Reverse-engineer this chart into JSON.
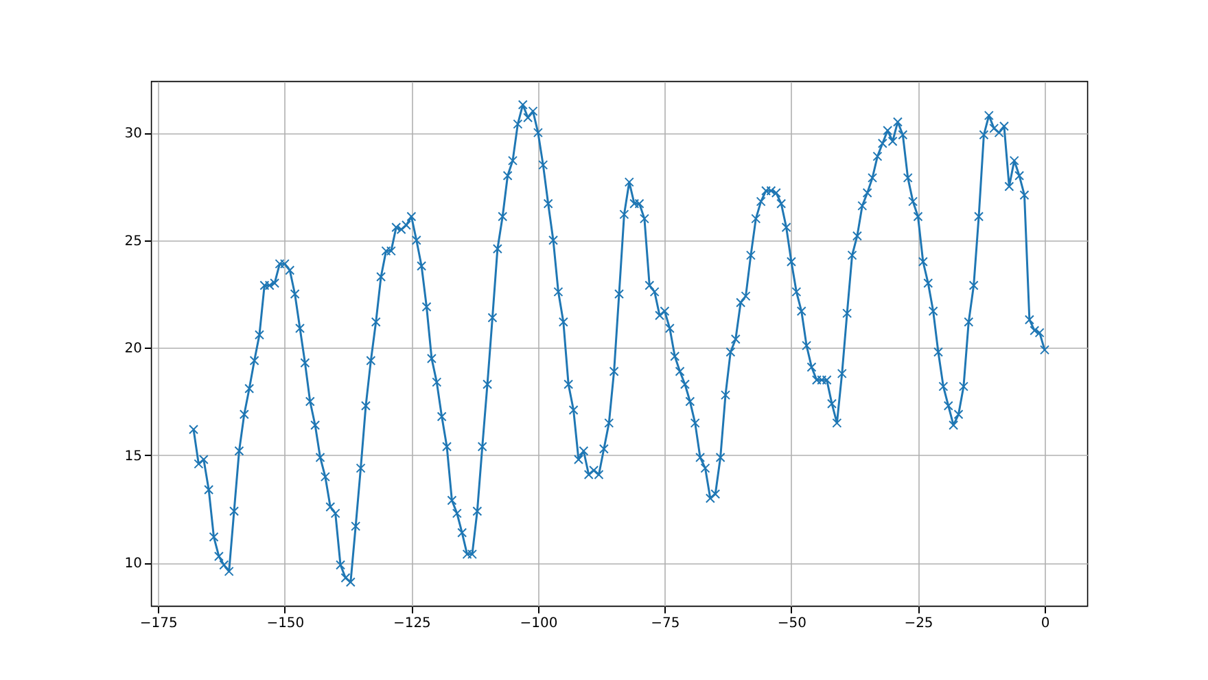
{
  "chart_data": {
    "type": "line",
    "marker": "cross",
    "line_style": "solid",
    "grid": true,
    "xlim": [
      -176.4,
      8.4
    ],
    "xticks": [
      -175,
      -150,
      -125,
      -100,
      -75,
      -50,
      -25,
      0
    ],
    "ylim": [
      8.0,
      32.4
    ],
    "yticks": [
      10,
      15,
      20,
      25,
      30
    ],
    "x": [
      -168,
      -167,
      -166,
      -165,
      -164,
      -163,
      -162,
      -161,
      -160,
      -159,
      -158,
      -157,
      -156,
      -155,
      -154,
      -153,
      -152,
      -151,
      -150,
      -149,
      -148,
      -147,
      -146,
      -145,
      -144,
      -143,
      -142,
      -141,
      -140,
      -139,
      -138,
      -137,
      -136,
      -135,
      -134,
      -133,
      -132,
      -131,
      -130,
      -129,
      -128,
      -127,
      -126,
      -125,
      -124,
      -123,
      -122,
      -121,
      -120,
      -119,
      -118,
      -117,
      -116,
      -115,
      -114,
      -113,
      -112,
      -111,
      -110,
      -109,
      -108,
      -107,
      -106,
      -105,
      -104,
      -103,
      -102,
      -101,
      -100,
      -99,
      -98,
      -97,
      -96,
      -95,
      -94,
      -93,
      -92,
      -91,
      -90,
      -89,
      -88,
      -87,
      -86,
      -85,
      -84,
      -83,
      -82,
      -81,
      -80,
      -79,
      -78,
      -77,
      -76,
      -75,
      -74,
      -73,
      -72,
      -71,
      -70,
      -69,
      -68,
      -67,
      -66,
      -65,
      -64,
      -63,
      -62,
      -61,
      -60,
      -59,
      -58,
      -57,
      -56,
      -55,
      -54,
      -53,
      -52,
      -51,
      -50,
      -49,
      -48,
      -47,
      -46,
      -45,
      -44,
      -43,
      -42,
      -41,
      -40,
      -39,
      -38,
      -37,
      -36,
      -35,
      -34,
      -33,
      -32,
      -31,
      -30,
      -29,
      -28,
      -27,
      -26,
      -25,
      -24,
      -23,
      -22,
      -21,
      -20,
      -19,
      -18,
      -17,
      -16,
      -15,
      -14,
      -13,
      -12,
      -11,
      -10,
      -9,
      -8,
      -7,
      -6,
      -5,
      -4,
      -3,
      -2,
      -1,
      0
    ],
    "series": [
      {
        "color": "#1f77b4",
        "values": [
          16.2,
          14.6,
          14.8,
          13.4,
          11.2,
          10.3,
          9.9,
          9.6,
          12.4,
          15.2,
          16.9,
          18.1,
          19.4,
          20.6,
          22.9,
          22.9,
          23.0,
          23.9,
          23.9,
          23.6,
          22.5,
          20.9,
          19.3,
          17.5,
          16.4,
          14.9,
          14.0,
          12.6,
          12.3,
          9.9,
          9.3,
          9.1,
          11.7,
          14.4,
          17.3,
          19.4,
          21.2,
          23.3,
          24.5,
          24.5,
          25.6,
          25.5,
          25.7,
          26.1,
          25.0,
          23.8,
          21.9,
          19.5,
          18.4,
          16.8,
          15.4,
          12.9,
          12.3,
          11.4,
          10.4,
          10.4,
          12.4,
          15.4,
          18.3,
          21.4,
          24.6,
          26.1,
          28.0,
          28.7,
          30.4,
          31.3,
          30.7,
          31.0,
          30.0,
          28.5,
          26.7,
          25.0,
          22.6,
          21.2,
          18.3,
          17.1,
          14.8,
          15.2,
          14.1,
          14.3,
          14.1,
          15.3,
          16.5,
          18.9,
          22.5,
          26.2,
          27.7,
          26.7,
          26.7,
          26.0,
          22.9,
          22.6,
          21.5,
          21.7,
          20.9,
          19.6,
          18.9,
          18.3,
          17.5,
          16.5,
          14.9,
          14.4,
          13.0,
          13.2,
          14.9,
          17.8,
          19.8,
          20.4,
          22.1,
          22.4,
          24.3,
          26.0,
          26.8,
          27.3,
          27.3,
          27.2,
          26.7,
          25.6,
          24.0,
          22.6,
          21.7,
          20.1,
          19.1,
          18.5,
          18.5,
          18.5,
          17.4,
          16.5,
          18.8,
          21.6,
          24.3,
          25.2,
          26.6,
          27.2,
          27.9,
          28.9,
          29.5,
          30.1,
          29.6,
          30.5,
          29.9,
          27.9,
          26.8,
          26.1,
          24.0,
          23.0,
          21.7,
          19.8,
          18.2,
          17.3,
          16.4,
          16.9,
          18.2,
          21.2,
          22.9,
          26.1,
          29.9,
          30.8,
          30.2,
          30.0,
          30.3,
          27.5,
          28.7,
          28.0,
          27.1,
          21.3,
          20.8,
          20.7,
          19.9
        ]
      }
    ]
  }
}
